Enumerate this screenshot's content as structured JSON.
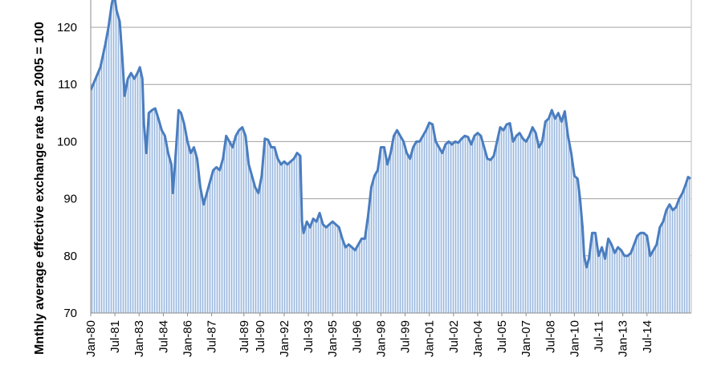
{
  "chart_data": {
    "type": "area",
    "ylabel": "Mnthly average effective exchange rate  Jan 2005 = 100",
    "ylim": [
      70,
      125
    ],
    "yticks": [
      70,
      80,
      90,
      100,
      110,
      120
    ],
    "grid": true,
    "legend": "none",
    "colors": {
      "line": "#4a7dbf",
      "fill": "#dce8f6",
      "fill_stripe": "#9ab6dd",
      "grid": "#a0a0a0"
    },
    "categories": [
      "Jan-80",
      "Jul-81",
      "Jan-83",
      "Jul-84",
      "Jan-86",
      "Jul-87",
      "Jul-89",
      "Jul-90",
      "Jan-92",
      "Jul-93",
      "Jan-95",
      "Jul-96",
      "Jan-98",
      "Jul-99",
      "Jan-01",
      "Jul-02",
      "Jan-04",
      "Jul-05",
      "Jan-07",
      "Jul-08",
      "Jan-10",
      "Jul-11",
      "Jan-13",
      "Jul-14"
    ],
    "x": [
      1980.0,
      1981.5,
      1983.0,
      1984.5,
      1986.0,
      1987.5,
      1989.5,
      1990.5,
      1992.0,
      1993.5,
      1995.0,
      1996.5,
      1998.0,
      1999.5,
      2001.0,
      2002.5,
      2004.0,
      2005.5,
      2007.0,
      2008.5,
      2010.0,
      2011.5,
      2013.0,
      2014.5
    ],
    "series": [
      {
        "points": [
          [
            1980.0,
            109
          ],
          [
            1980.3,
            111
          ],
          [
            1980.6,
            113
          ],
          [
            1980.9,
            117
          ],
          [
            1981.1,
            120
          ],
          [
            1981.3,
            124
          ],
          [
            1981.45,
            126
          ],
          [
            1981.6,
            123
          ],
          [
            1981.8,
            121
          ],
          [
            1981.95,
            115
          ],
          [
            1982.1,
            108
          ],
          [
            1982.3,
            111
          ],
          [
            1982.5,
            112
          ],
          [
            1982.7,
            111
          ],
          [
            1982.9,
            112
          ],
          [
            1983.05,
            113
          ],
          [
            1983.2,
            111
          ],
          [
            1983.3,
            103
          ],
          [
            1983.45,
            98
          ],
          [
            1983.6,
            105
          ],
          [
            1983.8,
            105.5
          ],
          [
            1984.0,
            105.8
          ],
          [
            1984.2,
            104
          ],
          [
            1984.4,
            102
          ],
          [
            1984.6,
            101
          ],
          [
            1984.8,
            98
          ],
          [
            1985.0,
            96
          ],
          [
            1985.1,
            91
          ],
          [
            1985.3,
            99
          ],
          [
            1985.45,
            105.5
          ],
          [
            1985.6,
            105
          ],
          [
            1985.8,
            103
          ],
          [
            1986.0,
            100
          ],
          [
            1986.2,
            98
          ],
          [
            1986.4,
            99
          ],
          [
            1986.6,
            97
          ],
          [
            1986.8,
            92
          ],
          [
            1987.0,
            89
          ],
          [
            1987.2,
            91
          ],
          [
            1987.4,
            93
          ],
          [
            1987.6,
            95
          ],
          [
            1987.8,
            95.5
          ],
          [
            1988.0,
            95
          ],
          [
            1988.2,
            97
          ],
          [
            1988.4,
            101
          ],
          [
            1988.6,
            100
          ],
          [
            1988.8,
            99
          ],
          [
            1989.0,
            101
          ],
          [
            1989.2,
            102
          ],
          [
            1989.4,
            102.5
          ],
          [
            1989.6,
            101
          ],
          [
            1989.8,
            96
          ],
          [
            1990.0,
            94
          ],
          [
            1990.2,
            92
          ],
          [
            1990.4,
            91
          ],
          [
            1990.6,
            94
          ],
          [
            1990.8,
            100.5
          ],
          [
            1991.0,
            100.3
          ],
          [
            1991.2,
            99
          ],
          [
            1991.4,
            99
          ],
          [
            1991.6,
            97
          ],
          [
            1991.8,
            96
          ],
          [
            1992.0,
            96.5
          ],
          [
            1992.2,
            96
          ],
          [
            1992.4,
            96.5
          ],
          [
            1992.6,
            97
          ],
          [
            1992.8,
            98
          ],
          [
            1993.0,
            97.5
          ],
          [
            1993.1,
            86
          ],
          [
            1993.2,
            84
          ],
          [
            1993.4,
            86
          ],
          [
            1993.6,
            85
          ],
          [
            1993.8,
            86.5
          ],
          [
            1994.0,
            86
          ],
          [
            1994.2,
            87.5
          ],
          [
            1994.4,
            85.5
          ],
          [
            1994.6,
            85
          ],
          [
            1994.8,
            85.5
          ],
          [
            1995.0,
            86
          ],
          [
            1995.2,
            85.5
          ],
          [
            1995.4,
            85
          ],
          [
            1995.6,
            83
          ],
          [
            1995.8,
            81.5
          ],
          [
            1996.0,
            82
          ],
          [
            1996.2,
            81.5
          ],
          [
            1996.4,
            81
          ],
          [
            1996.6,
            82
          ],
          [
            1996.8,
            83
          ],
          [
            1997.0,
            83
          ],
          [
            1997.2,
            87
          ],
          [
            1997.4,
            92
          ],
          [
            1997.6,
            94
          ],
          [
            1997.8,
            95
          ],
          [
            1998.0,
            99
          ],
          [
            1998.2,
            99
          ],
          [
            1998.4,
            96
          ],
          [
            1998.6,
            98
          ],
          [
            1998.8,
            101
          ],
          [
            1999.0,
            102
          ],
          [
            1999.2,
            101
          ],
          [
            1999.4,
            100
          ],
          [
            1999.6,
            98
          ],
          [
            1999.8,
            97
          ],
          [
            2000.0,
            99
          ],
          [
            2000.2,
            100
          ],
          [
            2000.4,
            100
          ],
          [
            2000.6,
            101
          ],
          [
            2000.8,
            102
          ],
          [
            2001.0,
            103.3
          ],
          [
            2001.2,
            103
          ],
          [
            2001.4,
            100
          ],
          [
            2001.6,
            99
          ],
          [
            2001.8,
            98
          ],
          [
            2002.0,
            99.5
          ],
          [
            2002.2,
            100
          ],
          [
            2002.4,
            99.5
          ],
          [
            2002.6,
            100
          ],
          [
            2002.8,
            99.8
          ],
          [
            2003.0,
            100.5
          ],
          [
            2003.2,
            101
          ],
          [
            2003.4,
            100.8
          ],
          [
            2003.6,
            99.5
          ],
          [
            2003.8,
            101
          ],
          [
            2004.0,
            101.5
          ],
          [
            2004.2,
            101
          ],
          [
            2004.4,
            99
          ],
          [
            2004.6,
            97
          ],
          [
            2004.8,
            96.8
          ],
          [
            2005.0,
            97.5
          ],
          [
            2005.2,
            100
          ],
          [
            2005.4,
            102.5
          ],
          [
            2005.6,
            102
          ],
          [
            2005.8,
            103
          ],
          [
            2006.0,
            103.2
          ],
          [
            2006.2,
            100
          ],
          [
            2006.4,
            101
          ],
          [
            2006.6,
            101.5
          ],
          [
            2006.8,
            100.5
          ],
          [
            2007.0,
            100
          ],
          [
            2007.2,
            101
          ],
          [
            2007.4,
            102.5
          ],
          [
            2007.6,
            101.5
          ],
          [
            2007.8,
            99
          ],
          [
            2008.0,
            100
          ],
          [
            2008.2,
            103.5
          ],
          [
            2008.4,
            104
          ],
          [
            2008.6,
            105.5
          ],
          [
            2008.8,
            104
          ],
          [
            2009.0,
            105
          ],
          [
            2009.2,
            103.5
          ],
          [
            2009.4,
            105.3
          ],
          [
            2009.6,
            101
          ],
          [
            2009.8,
            98
          ],
          [
            2010.0,
            94
          ],
          [
            2010.2,
            93.5
          ],
          [
            2010.35,
            90
          ],
          [
            2010.5,
            85
          ],
          [
            2010.6,
            80
          ],
          [
            2010.75,
            78
          ],
          [
            2010.9,
            79.5
          ],
          [
            2011.1,
            84
          ],
          [
            2011.3,
            84
          ],
          [
            2011.5,
            80
          ],
          [
            2011.7,
            81.5
          ],
          [
            2011.9,
            79.5
          ],
          [
            2012.1,
            83
          ],
          [
            2012.3,
            82
          ],
          [
            2012.5,
            80.5
          ],
          [
            2012.7,
            81.5
          ],
          [
            2012.9,
            81
          ],
          [
            2013.1,
            80
          ],
          [
            2013.3,
            80
          ],
          [
            2013.5,
            80.5
          ],
          [
            2013.7,
            82
          ],
          [
            2013.9,
            83.5
          ],
          [
            2014.1,
            84
          ],
          [
            2014.3,
            84
          ],
          [
            2014.5,
            83.5
          ],
          [
            2014.7,
            80
          ],
          [
            2014.9,
            81
          ],
          [
            2015.1,
            82
          ],
          [
            2015.3,
            85
          ],
          [
            2015.5,
            86
          ],
          [
            2015.7,
            88
          ],
          [
            2015.9,
            89
          ],
          [
            2016.1,
            88
          ],
          [
            2016.3,
            88.5
          ],
          [
            2016.5,
            90
          ],
          [
            2016.7,
            91
          ],
          [
            2016.9,
            92.5
          ],
          [
            2017.05,
            93.8
          ],
          [
            2017.2,
            93.5
          ]
        ]
      }
    ]
  }
}
